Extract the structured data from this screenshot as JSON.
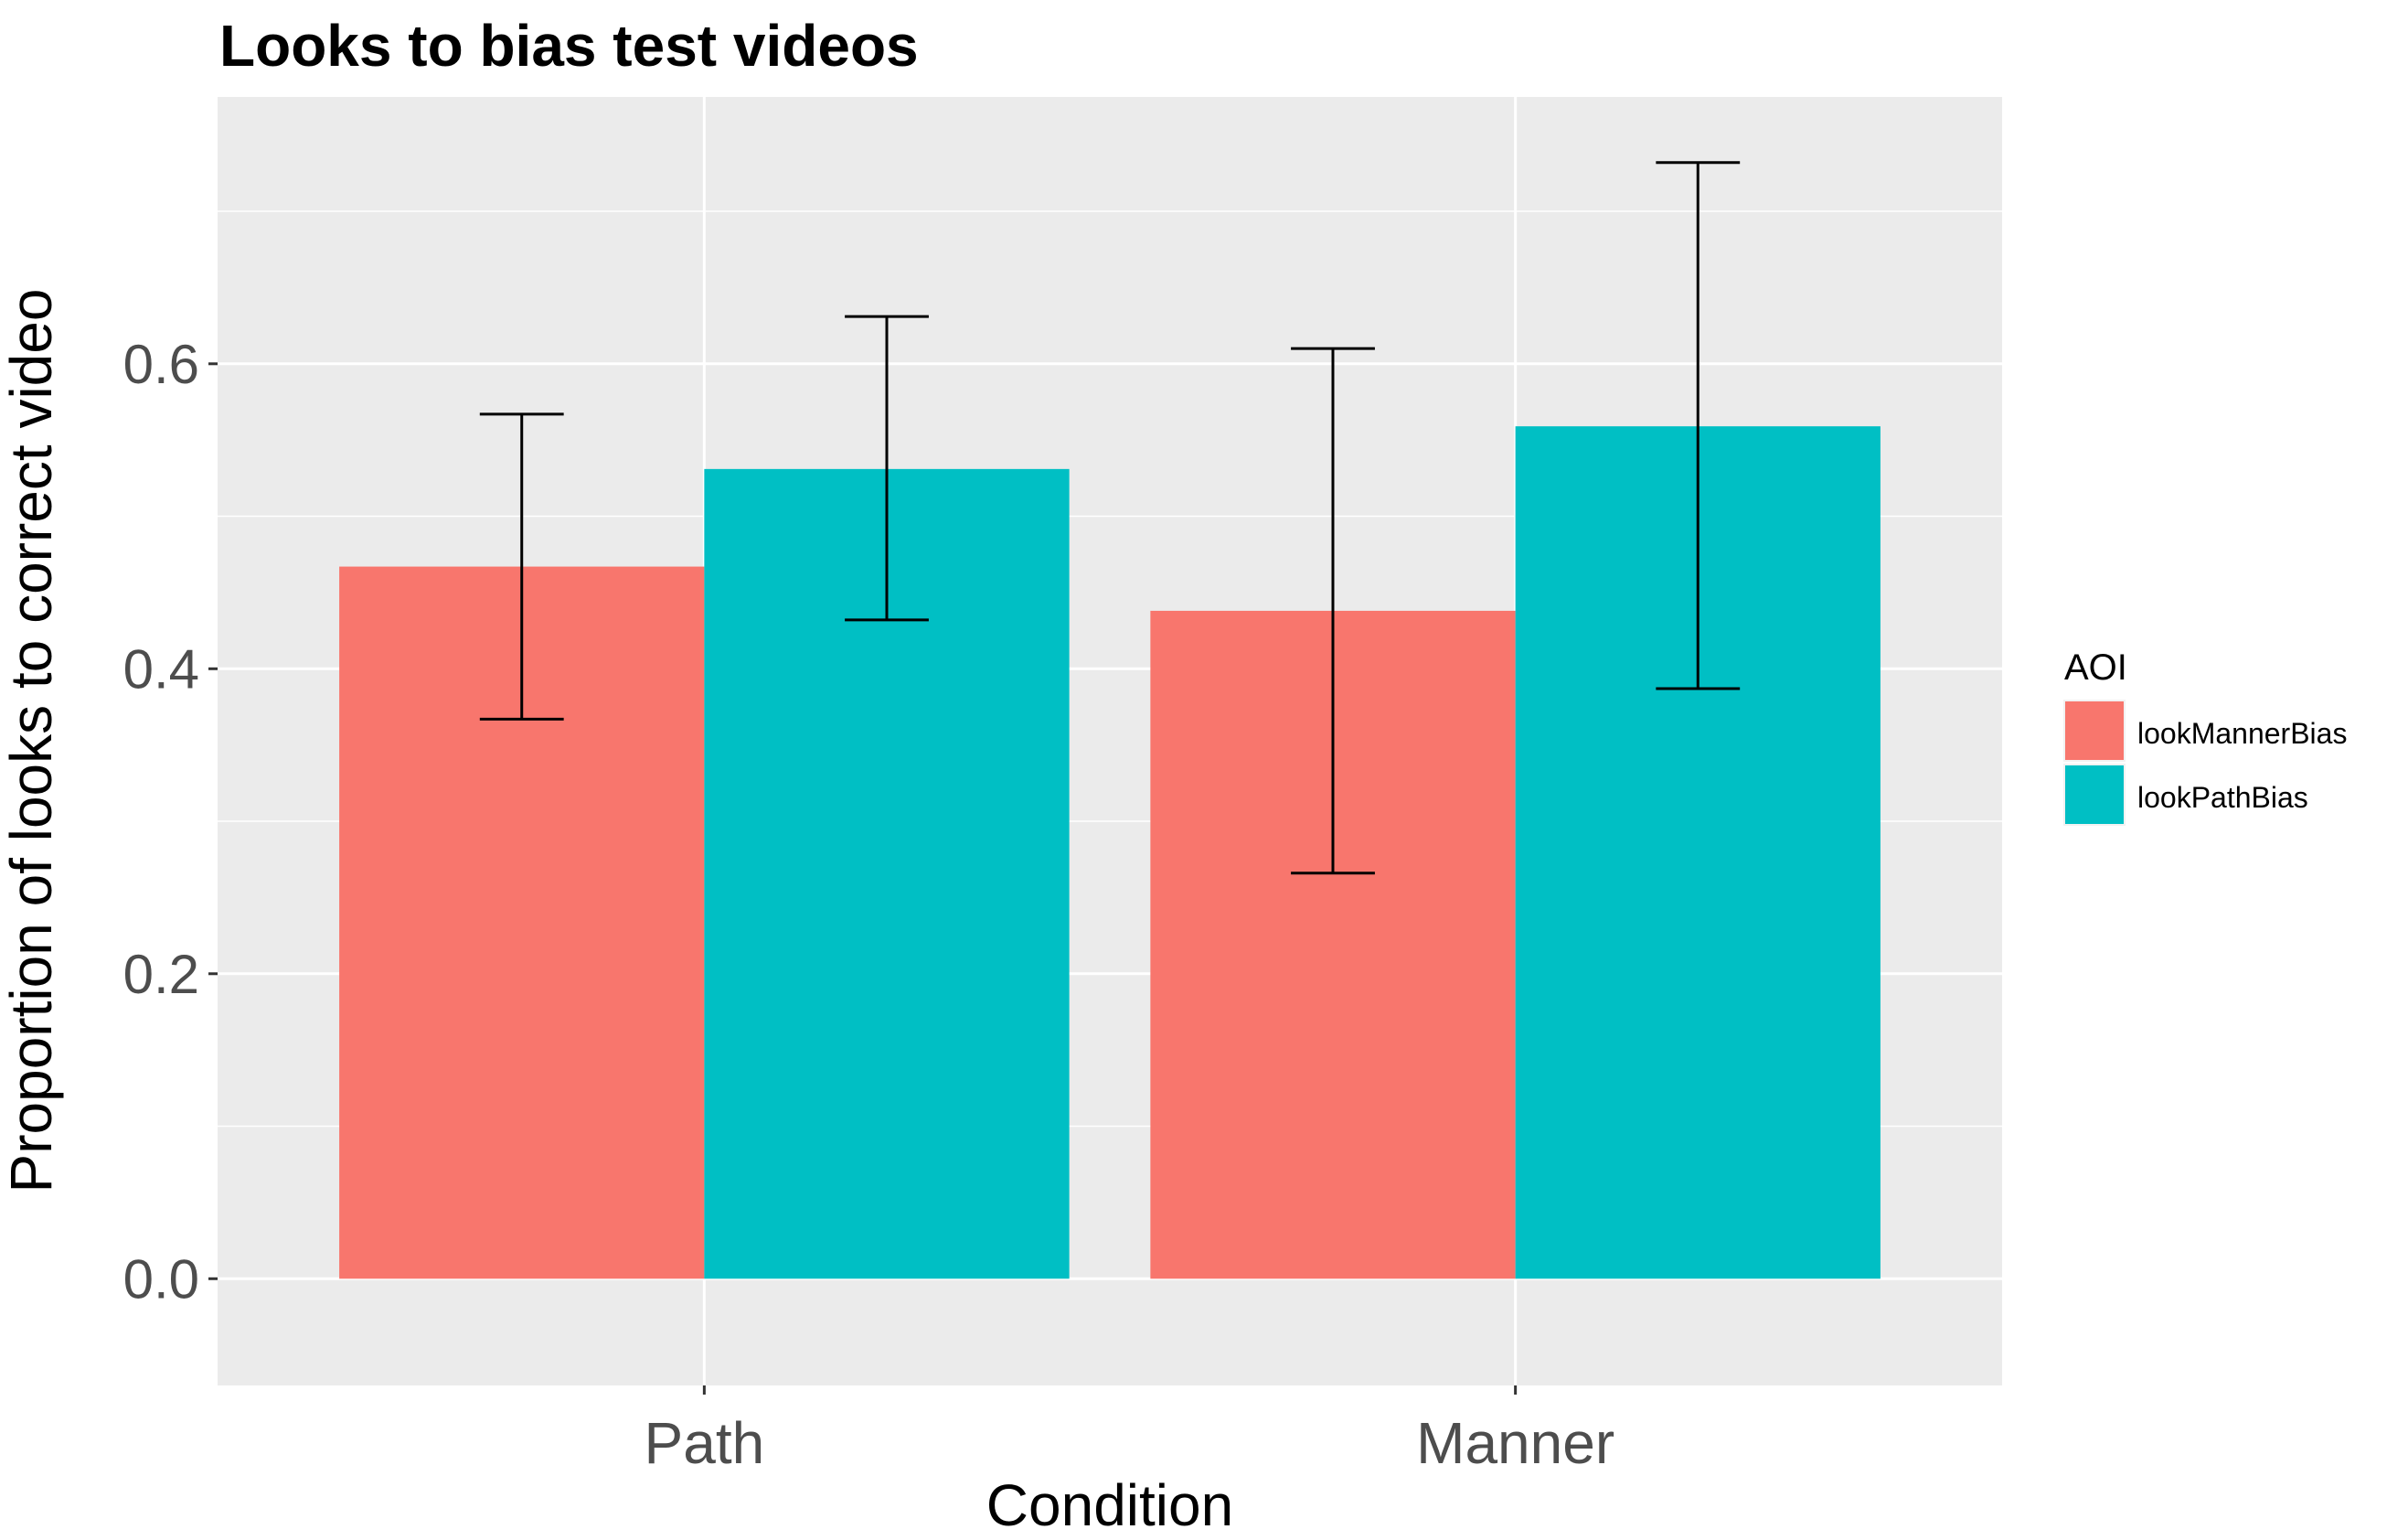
{
  "chart_data": {
    "type": "bar",
    "title": "Looks to bias test videos",
    "xlabel": "Condition",
    "ylabel": "Proportion of looks to correct video",
    "categories": [
      "Path",
      "Manner"
    ],
    "ylim": [
      -0.07,
      0.775
    ],
    "yticks": [
      0.0,
      0.2,
      0.4,
      0.6
    ],
    "ytick_labels": [
      "0.0",
      "0.2",
      "0.4",
      "0.6"
    ],
    "grid": true,
    "legend": {
      "title": "AOI",
      "position": "right"
    },
    "series": [
      {
        "name": "lookMannerBias",
        "color": "#F8766D",
        "values": [
          0.467,
          0.438
        ],
        "error_low": [
          0.367,
          0.266
        ],
        "error_high": [
          0.567,
          0.61
        ]
      },
      {
        "name": "lookPathBias",
        "color": "#00BFC4",
        "values": [
          0.531,
          0.559
        ],
        "error_low": [
          0.432,
          0.387
        ],
        "error_high": [
          0.631,
          0.732
        ]
      }
    ],
    "colors": {
      "panel_background": "#EBEBEB",
      "grid_major": "#FFFFFF",
      "text": "#000000",
      "tick_text": "#4D4D4D"
    }
  }
}
